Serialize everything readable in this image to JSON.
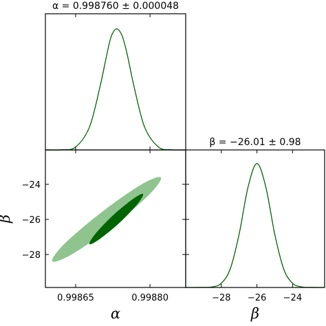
{
  "chart_data": [
    {
      "type": "line",
      "title": "α = 0.998760 ± 0.000048",
      "color": "#006400",
      "x": [
        0.998589,
        0.998622,
        0.99865,
        0.998678,
        0.998699,
        0.998713,
        0.998722,
        0.998733,
        0.998744,
        0.998754,
        0.998768,
        0.998789,
        0.998817,
        0.998844,
        0.998872
      ],
      "values": [
        0,
        0.001,
        0.024,
        0.19,
        0.52,
        0.79,
        0.94,
        1,
        0.94,
        0.79,
        0.52,
        0.19,
        0.024,
        0.001,
        0
      ],
      "xlim": [
        0.998589,
        0.998872
      ],
      "ylim": [
        0,
        1.125
      ]
    },
    {
      "type": "contour",
      "xlabel": "α",
      "ylabel": "β",
      "xlim": [
        0.998589,
        0.998872
      ],
      "ylim": [
        -29.88,
        -22.04
      ],
      "xticks": [
        0.99865,
        {
          "value": 0.9988,
          "label": "0.99880"
        }
      ],
      "yticks": [
        {
          "value": -24,
          "label": "−24"
        },
        {
          "value": -26,
          "label": "−26"
        },
        {
          "value": -28,
          "label": "−28"
        }
      ],
      "contours": [
        {
          "color": "#8fc48f",
          "x": [
            0.998822,
            0.998798,
            0.998724,
            0.998643,
            0.998603,
            0.998627,
            0.998702,
            0.998782
          ],
          "y": [
            -23.61,
            -24.6,
            -26.4,
            -27.98,
            -28.39,
            -27.4,
            -25.6,
            -24.02
          ]
        },
        {
          "color": "#006400",
          "x": [
            0.998786,
            0.998775,
            0.998739,
            0.998698,
            0.998678,
            0.998689,
            0.998725,
            0.998766
          ],
          "y": [
            -24.55,
            -25.11,
            -26.18,
            -27.13,
            -27.41,
            -26.85,
            -25.78,
            -24.83
          ]
        }
      ]
    },
    {
      "type": "line",
      "title": "β = −26.01 ± 0.98",
      "xlabel": "β",
      "color": "#006400",
      "x": [
        -30,
        -29,
        -28.5,
        -28,
        -27.5,
        -27,
        -26.5,
        -26,
        -25.5,
        -25,
        -24.5,
        -24,
        -23.5,
        -23,
        -22.2
      ],
      "values": [
        0,
        0.001,
        0.005,
        0.034,
        0.15,
        0.43,
        0.81,
        1,
        0.81,
        0.43,
        0.15,
        0.034,
        0.005,
        0.001,
        0
      ],
      "xlim": [
        -30,
        -22.2
      ],
      "ylim": [
        0,
        1.11
      ],
      "xticks": [
        {
          "value": -28,
          "label": "−28"
        },
        {
          "value": -26,
          "label": "−26"
        },
        {
          "value": -24,
          "label": "−24"
        }
      ]
    }
  ]
}
